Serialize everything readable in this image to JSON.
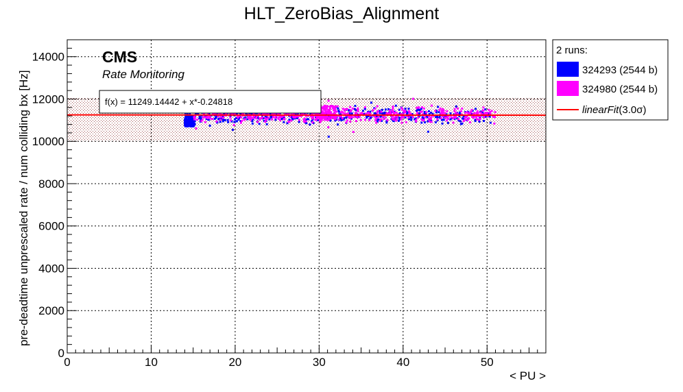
{
  "chart_data": {
    "type": "scatter",
    "title": "HLT_ZeroBias_Alignment",
    "xlabel": "< PU >",
    "ylabel": "pre-deadtime unprescaled rate / num colliding bx [Hz]",
    "xlim": [
      0,
      57
    ],
    "ylim": [
      0,
      14800
    ],
    "x_ticks": [
      0,
      10,
      20,
      30,
      40,
      50
    ],
    "y_ticks": [
      0,
      2000,
      4000,
      6000,
      8000,
      10000,
      12000,
      14000
    ],
    "grid": true,
    "legend_position": "outside-top-right",
    "cms_label": "CMS",
    "cms_sublabel": "Rate Monitoring",
    "fit": {
      "label": "f(x) = 11249.14442 + x*-0.24818",
      "name": "linearFit",
      "name_suffix": "(3.0σ)",
      "intercept": 11249.14442,
      "slope": -0.24818,
      "band_low": 10020,
      "band_high": 12080,
      "color": "#ff0000",
      "band_color": "#a05050"
    },
    "legend_header": "2 runs:",
    "series": [
      {
        "name": "324293 (2544 b)",
        "color": "#0000ff",
        "x_range": [
          13.8,
          50.5
        ],
        "y_center": 11200,
        "y_spread": 380,
        "marker": "square",
        "cluster": [
          14,
          15.2,
          10700,
          11200
        ]
      },
      {
        "name": "324980 (2544 b)",
        "color": "#ff00ff",
        "x_range": [
          15.0,
          51.0
        ],
        "y_center": 11250,
        "y_spread": 360,
        "marker": "square",
        "cluster": [
          29,
          32,
          11000,
          11700
        ]
      }
    ]
  }
}
